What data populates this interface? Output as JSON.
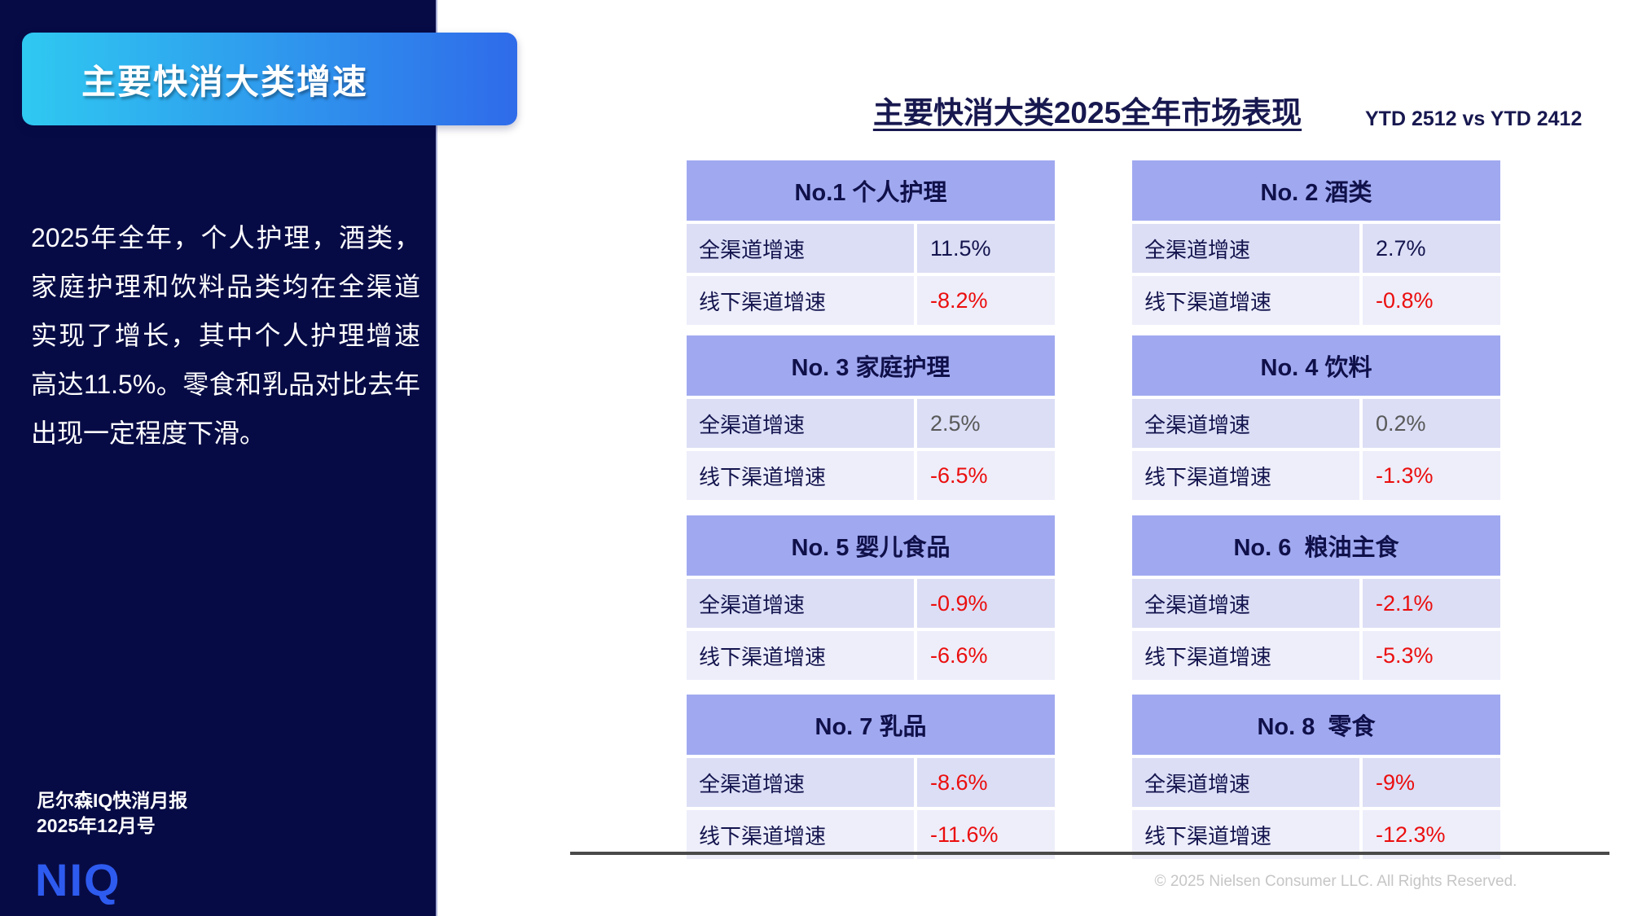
{
  "sidebar": {
    "banner_title": "主要快消大类增速",
    "body_text": "2025年全年，个人护理，酒类，家庭护理和饮料品类均在全渠道实现了增长，其中个人护理增速高达11.5%。零食和乳品对比去年出现一定程度下滑。",
    "report_name": "尼尔森IQ快消月报",
    "report_issue": "2025年12月号",
    "logo_text": "NIQ"
  },
  "main": {
    "title": "主要快消大类2025全年市场表现",
    "period_label": "YTD 2512 vs YTD 2412",
    "row_labels": {
      "omni": "全渠道增速",
      "offline": "线下渠道增速"
    },
    "tables": [
      {
        "title": "No.1 个人护理",
        "omni": "11.5%",
        "omni_color": "navy",
        "offline": "-8.2%",
        "offline_color": "red"
      },
      {
        "title": "No. 2 酒类",
        "omni": "2.7%",
        "omni_color": "navy",
        "offline": "-0.8%",
        "offline_color": "red"
      },
      {
        "title": "No. 3 家庭护理",
        "omni": "2.5%",
        "omni_color": "gray",
        "offline": "-6.5%",
        "offline_color": "red"
      },
      {
        "title": "No. 4 饮料",
        "omni": "0.2%",
        "omni_color": "gray",
        "offline": "-1.3%",
        "offline_color": "red"
      },
      {
        "title": "No. 5 婴儿食品",
        "omni": "-0.9%",
        "omni_color": "red",
        "offline": "-6.6%",
        "offline_color": "red"
      },
      {
        "title": "No. 6  粮油主食",
        "omni": "-2.1%",
        "omni_color": "red",
        "offline": "-5.3%",
        "offline_color": "red"
      },
      {
        "title": "No. 7 乳品",
        "omni": "-8.6%",
        "omni_color": "red",
        "offline": "-11.6%",
        "offline_color": "red"
      },
      {
        "title": "No. 8  零食",
        "omni": "-9%",
        "omni_color": "red",
        "offline": "-12.3%",
        "offline_color": "red"
      }
    ],
    "footer_copyright": "© 2025 Nielsen Consumer LLC. All Rights Reserved."
  },
  "colors": {
    "sidebar_bg": "#070B45",
    "banner_gradient_start": "#2FC9F1",
    "banner_gradient_end": "#2F6BEA",
    "table_header_bg": "#A0A9F0",
    "row_odd_bg": "#DBDEF5",
    "row_even_bg": "#EDEEFA",
    "value_navy": "#14144E",
    "value_gray": "#595959",
    "value_red": "#EB0E0E",
    "logo_blue": "#2E5BEF"
  }
}
